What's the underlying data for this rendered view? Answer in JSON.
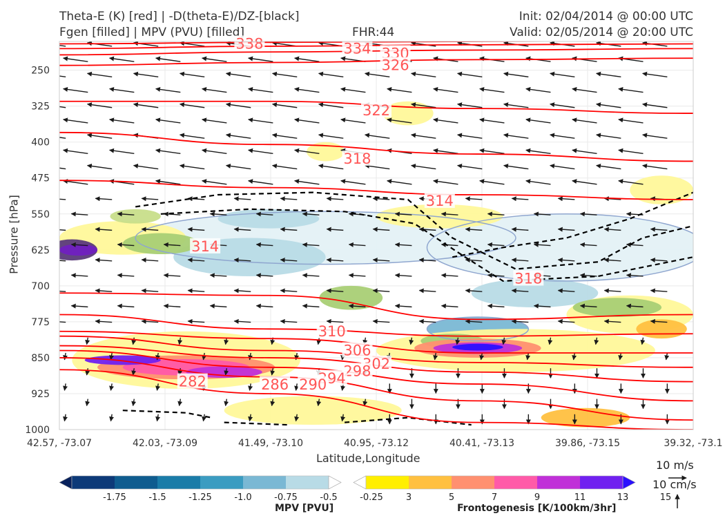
{
  "header": {
    "title_left_1": "Theta-E (K) [red] | -D(theta-E)/DZ-[black]",
    "title_left_2": "Fgen [filled] | MPV (PVU) [filled]",
    "title_center": "FHR:44",
    "title_right_1": "Init: 02/04/2014 @ 00:00 UTC",
    "title_right_2": "Valid: 02/05/2014 @ 20:00 UTC"
  },
  "colors": {
    "theta_e": "#ff0000",
    "theta_e_label": "#ff5555",
    "stability": "#000000",
    "mpv_contour": "#8fa6cf",
    "arrow": "#1a1a1a"
  },
  "chart_data": {
    "type": "heatmap",
    "subtype": "vertical cross-section",
    "xlabel": "Latitude,Longitude",
    "ylabel": "Pressure [hPa]",
    "x_ticks": [
      "42.57, -73.07",
      "42.03, -73.09",
      "41.49, -73.10",
      "40.95, -73.12",
      "40.41, -73.13",
      "39.86, -73.15",
      "39.32, -73.1"
    ],
    "y_ticks": [
      250,
      325,
      400,
      475,
      550,
      625,
      700,
      775,
      850,
      925,
      1000
    ],
    "ylim": [
      1000,
      190
    ],
    "y_inverted": true,
    "grid": true,
    "theta_e_contours": [
      {
        "value": 338,
        "ys": [
          195,
          192,
          190,
          188
        ]
      },
      {
        "value": 334,
        "ys": [
          205,
          200,
          197,
          195
        ]
      },
      {
        "value": 330,
        "ys": [
          218,
          212,
          208,
          205
        ]
      },
      {
        "value": 326,
        "ys": [
          240,
          234,
          228,
          225
        ]
      },
      {
        "value": 322,
        "ys": [
          315,
          315,
          330,
          340
        ]
      },
      {
        "value": 318,
        "ys": [
          380,
          405,
          425,
          440
        ]
      },
      {
        "value": 314,
        "ys": [
          480,
          495,
          510,
          520
        ]
      },
      {
        "value": 310,
        "ys": [
          715,
          720,
          770,
          760
        ]
      },
      {
        "value": 306,
        "ys": [
          760,
          790,
          805,
          800
        ]
      },
      {
        "value": 302,
        "ys": [
          795,
          810,
          840,
          840
        ]
      },
      {
        "value": 298,
        "ys": [
          805,
          835,
          860,
          870
        ]
      },
      {
        "value": 294,
        "ys": [
          825,
          850,
          880,
          900
        ]
      },
      {
        "value": 290,
        "ys": [
          835,
          870,
          905,
          940
        ]
      },
      {
        "value": 286,
        "ys": [
          850,
          890,
          940,
          980
        ]
      },
      {
        "value": 282,
        "ys": [
          875,
          925,
          985,
          1000
        ]
      }
    ],
    "theta_e_labels": [
      {
        "text": "338",
        "x": 0.3,
        "y": 195
      },
      {
        "text": "334",
        "x": 0.47,
        "y": 205
      },
      {
        "text": "330",
        "x": 0.53,
        "y": 215
      },
      {
        "text": "326",
        "x": 0.53,
        "y": 240
      },
      {
        "text": "322",
        "x": 0.5,
        "y": 334
      },
      {
        "text": "318",
        "x": 0.47,
        "y": 435
      },
      {
        "text": "314",
        "x": 0.6,
        "y": 523
      },
      {
        "text": "314",
        "x": 0.23,
        "y": 618
      },
      {
        "text": "318",
        "x": 0.74,
        "y": 685
      },
      {
        "text": "310",
        "x": 0.43,
        "y": 795
      },
      {
        "text": "306",
        "x": 0.47,
        "y": 835
      },
      {
        "text": "302",
        "x": 0.5,
        "y": 863
      },
      {
        "text": "298",
        "x": 0.47,
        "y": 878
      },
      {
        "text": "294",
        "x": 0.43,
        "y": 893
      },
      {
        "text": "290",
        "x": 0.4,
        "y": 906
      },
      {
        "text": "286",
        "x": 0.34,
        "y": 906
      },
      {
        "text": "282",
        "x": 0.21,
        "y": 900
      }
    ],
    "mpv_colorbar": {
      "label": "MPV [PVU]",
      "ticks": [
        "-1.75",
        "-1.5",
        "-1.25",
        "-1.0",
        "-0.75",
        "-0.5",
        "-0.25"
      ],
      "colors": [
        "#08215c",
        "#0d3a78",
        "#0f5c8f",
        "#1a7ca8",
        "#3b9cc1",
        "#7ab8d4",
        "#b8dbe6",
        "#ffffff"
      ]
    },
    "fgen_colorbar": {
      "label": "Frontogenesis [K/100km/3hr]",
      "ticks": [
        "3",
        "5",
        "7",
        "9",
        "11",
        "13",
        "15"
      ],
      "colors": [
        "#ffffff",
        "#ffef00",
        "#ffc040",
        "#ff9070",
        "#ff5aa8",
        "#c030d8",
        "#7020f0",
        "#2a10ff"
      ]
    },
    "vector_scale": {
      "horizontal": "10 m/s",
      "vertical": "10 cm/s"
    }
  }
}
